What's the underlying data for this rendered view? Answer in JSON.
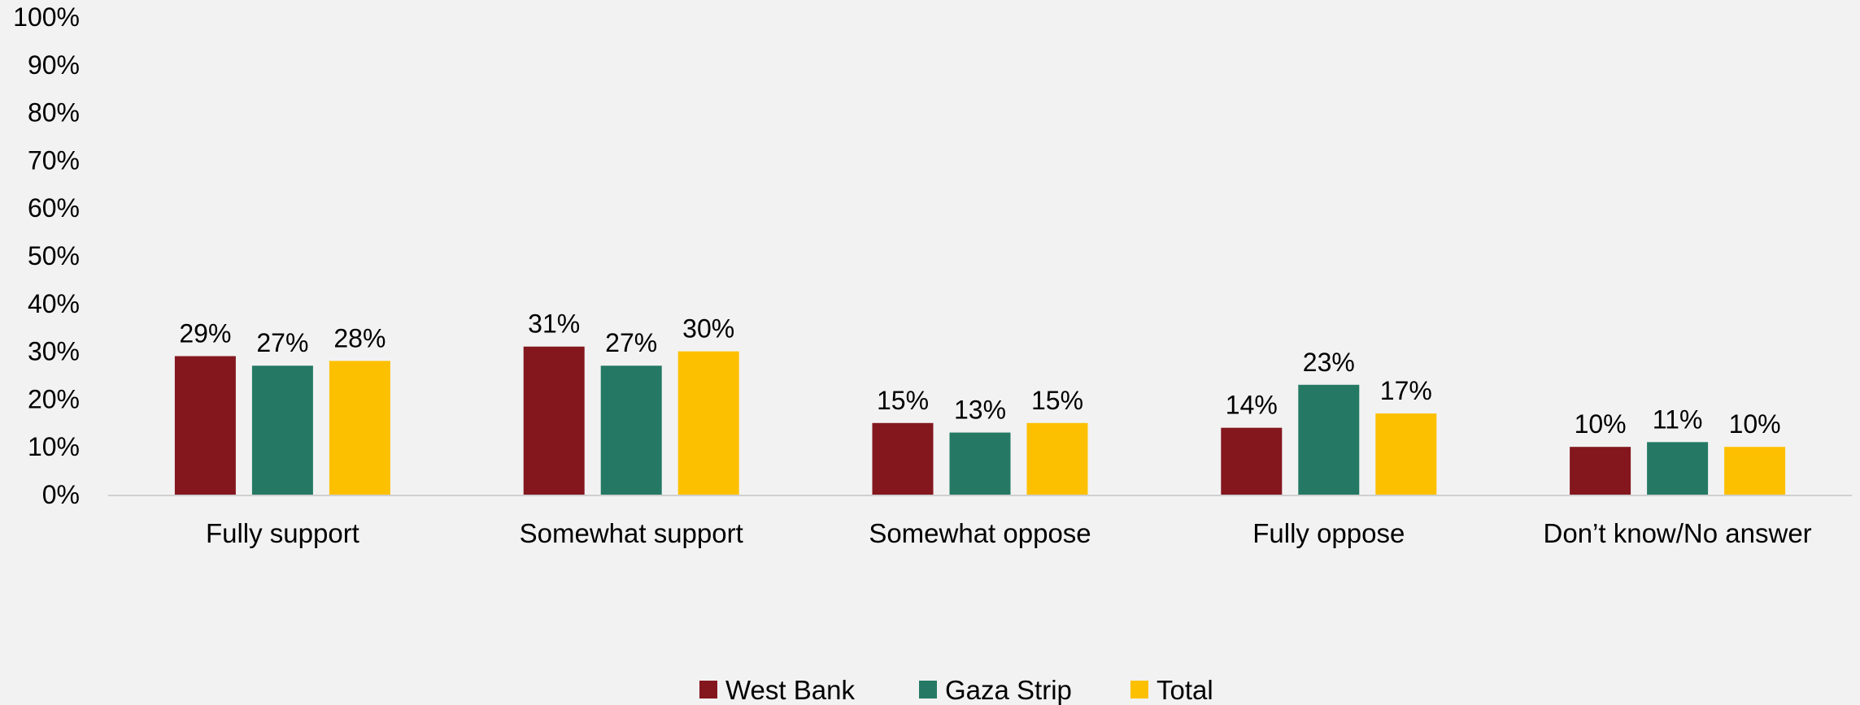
{
  "chart_data": {
    "type": "bar",
    "title": "",
    "xlabel": "",
    "ylabel": "",
    "ylim": [
      0,
      100
    ],
    "yticks": [
      "0%",
      "10%",
      "20%",
      "30%",
      "40%",
      "50%",
      "60%",
      "70%",
      "80%",
      "90%",
      "100%"
    ],
    "grid": false,
    "legend_position": "bottom",
    "categories": [
      "Fully support",
      "Somewhat support",
      "Somewhat oppose",
      "Fully oppose",
      "Don’t know/No answer"
    ],
    "series": [
      {
        "name": "West Bank",
        "color": "#84171e",
        "values": [
          29,
          31,
          15,
          14,
          10
        ],
        "labels": [
          "29%",
          "31%",
          "15%",
          "14%",
          "10%"
        ]
      },
      {
        "name": "Gaza Strip",
        "color": "#257964",
        "values": [
          27,
          27,
          13,
          23,
          11
        ],
        "labels": [
          "27%",
          "27%",
          "13%",
          "23%",
          "11%"
        ]
      },
      {
        "name": "Total",
        "color": "#fdc000",
        "values": [
          28,
          30,
          15,
          17,
          10
        ],
        "labels": [
          "28%",
          "30%",
          "15%",
          "17%",
          "10%"
        ]
      }
    ]
  }
}
